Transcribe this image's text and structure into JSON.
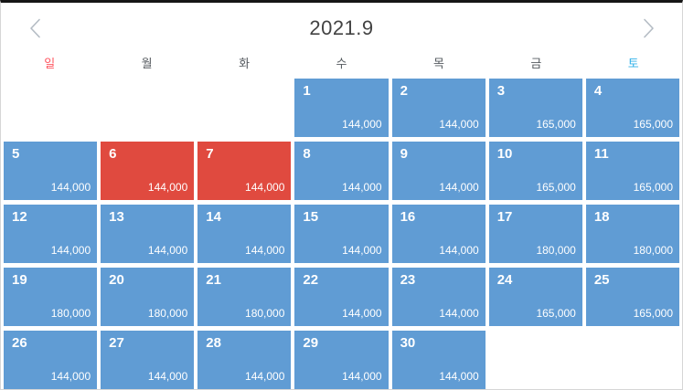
{
  "header": {
    "title": "2021.9"
  },
  "weekdays": [
    {
      "label": "일",
      "type": "sun"
    },
    {
      "label": "월",
      "type": "weekday"
    },
    {
      "label": "화",
      "type": "weekday"
    },
    {
      "label": "수",
      "type": "weekday"
    },
    {
      "label": "목",
      "type": "weekday"
    },
    {
      "label": "금",
      "type": "weekday"
    },
    {
      "label": "토",
      "type": "sat"
    }
  ],
  "colors": {
    "available_cell": "#609cd4",
    "selected_cell": "#e04a3f",
    "sunday_label": "#ff5661",
    "saturday_label": "#2fb1e9",
    "weekday_label": "#565b60",
    "title": "#434343",
    "chevron": "#b4bcc4",
    "top_border": "#161616"
  },
  "calendar": {
    "cells": [
      {
        "empty": true
      },
      {
        "empty": true
      },
      {
        "empty": true
      },
      {
        "day": "1",
        "price": "144,000"
      },
      {
        "day": "2",
        "price": "144,000"
      },
      {
        "day": "3",
        "price": "165,000"
      },
      {
        "day": "4",
        "price": "165,000"
      },
      {
        "day": "5",
        "price": "144,000"
      },
      {
        "day": "6",
        "price": "144,000",
        "selected": true
      },
      {
        "day": "7",
        "price": "144,000",
        "selected": true
      },
      {
        "day": "8",
        "price": "144,000"
      },
      {
        "day": "9",
        "price": "144,000"
      },
      {
        "day": "10",
        "price": "165,000"
      },
      {
        "day": "11",
        "price": "165,000"
      },
      {
        "day": "12",
        "price": "144,000"
      },
      {
        "day": "13",
        "price": "144,000"
      },
      {
        "day": "14",
        "price": "144,000"
      },
      {
        "day": "15",
        "price": "144,000"
      },
      {
        "day": "16",
        "price": "144,000"
      },
      {
        "day": "17",
        "price": "180,000"
      },
      {
        "day": "18",
        "price": "180,000"
      },
      {
        "day": "19",
        "price": "180,000"
      },
      {
        "day": "20",
        "price": "180,000"
      },
      {
        "day": "21",
        "price": "180,000"
      },
      {
        "day": "22",
        "price": "144,000"
      },
      {
        "day": "23",
        "price": "144,000"
      },
      {
        "day": "24",
        "price": "165,000"
      },
      {
        "day": "25",
        "price": "165,000"
      },
      {
        "day": "26",
        "price": "144,000"
      },
      {
        "day": "27",
        "price": "144,000"
      },
      {
        "day": "28",
        "price": "144,000"
      },
      {
        "day": "29",
        "price": "144,000"
      },
      {
        "day": "30",
        "price": "144,000"
      },
      {
        "empty": true
      },
      {
        "empty": true
      }
    ]
  }
}
